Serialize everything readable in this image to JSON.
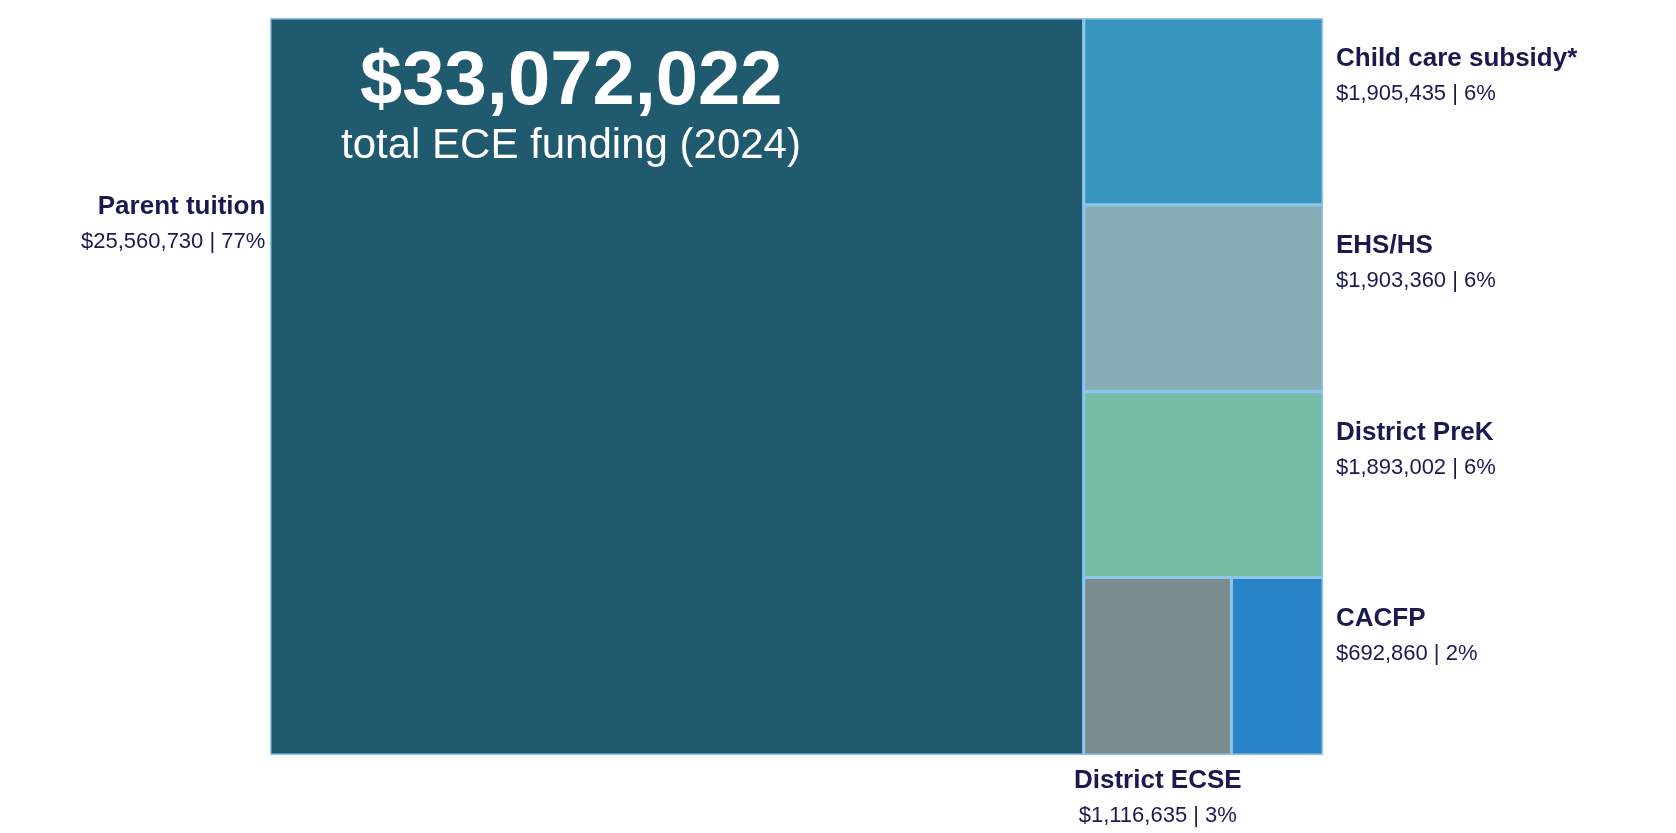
{
  "chart_data": {
    "type": "other",
    "title": "$33,072,022",
    "subtitle": "total ECE funding (2024)",
    "categories": [
      "Parent tuition",
      "Child care subsidy*",
      "EHS/HS",
      "District PreK",
      "District ECSE",
      "CACFP"
    ],
    "values": [
      25560730,
      1905435,
      1903360,
      1893002,
      1116635,
      692860
    ],
    "value_labels": [
      "$25,560,730 | 77%",
      "$1,905,435 | 6%",
      "$1,903,360 | 6%",
      "$1,893,002 | 6%",
      "$1,116,635 | 3%",
      "$692,860 | 2%"
    ],
    "colors": [
      "#1f5a6e",
      "#3795bb",
      "#86adb6",
      "#74bea6",
      "#7a8c8d",
      "#2883c7"
    ]
  }
}
